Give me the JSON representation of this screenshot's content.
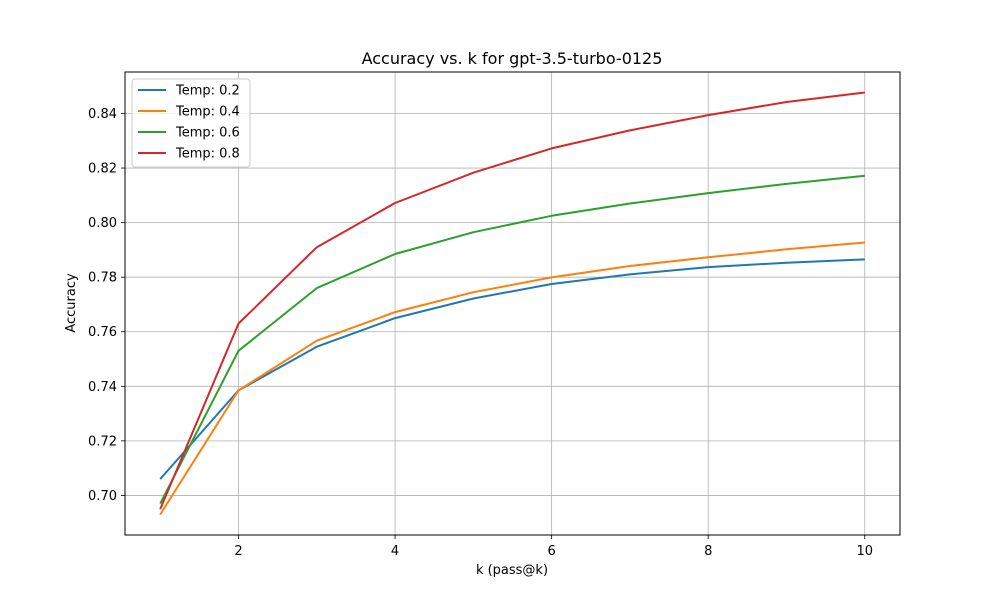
{
  "chart_data": {
    "type": "line",
    "title": "Accuracy vs. k for gpt-3.5-turbo-0125",
    "xlabel": "k (pass@k)",
    "ylabel": "Accuracy",
    "xlim": [
      0.55,
      10.45
    ],
    "ylim": [
      0.6855,
      0.8552
    ],
    "x_ticks": [
      2,
      4,
      6,
      8,
      10
    ],
    "x_tick_labels": [
      "2",
      "4",
      "6",
      "8",
      "10"
    ],
    "y_ticks": [
      0.7,
      0.72,
      0.74,
      0.76,
      0.78,
      0.8,
      0.82,
      0.84
    ],
    "y_tick_labels": [
      "0.70",
      "0.72",
      "0.74",
      "0.76",
      "0.78",
      "0.80",
      "0.82",
      "0.84"
    ],
    "grid": true,
    "legend_position": "top-left",
    "x": [
      1,
      2,
      3,
      4,
      5,
      6,
      7,
      8,
      9,
      10
    ],
    "series": [
      {
        "name": "Temp: 0.2",
        "color": "#1f77b4",
        "values": [
          0.706,
          0.7385,
          0.7545,
          0.765,
          0.7722,
          0.7775,
          0.781,
          0.7837,
          0.7853,
          0.7865
        ]
      },
      {
        "name": "Temp: 0.4",
        "color": "#ff7f0e",
        "values": [
          0.693,
          0.7385,
          0.7567,
          0.7672,
          0.7745,
          0.7799,
          0.7841,
          0.7873,
          0.7902,
          0.7927
        ]
      },
      {
        "name": "Temp: 0.6",
        "color": "#2ca02c",
        "values": [
          0.697,
          0.753,
          0.776,
          0.7885,
          0.7965,
          0.8025,
          0.807,
          0.8108,
          0.8142,
          0.8172
        ]
      },
      {
        "name": "Temp: 0.8",
        "color": "#d62728",
        "values": [
          0.695,
          0.763,
          0.791,
          0.8072,
          0.8183,
          0.8272,
          0.8338,
          0.8394,
          0.8442,
          0.8477
        ]
      }
    ]
  }
}
